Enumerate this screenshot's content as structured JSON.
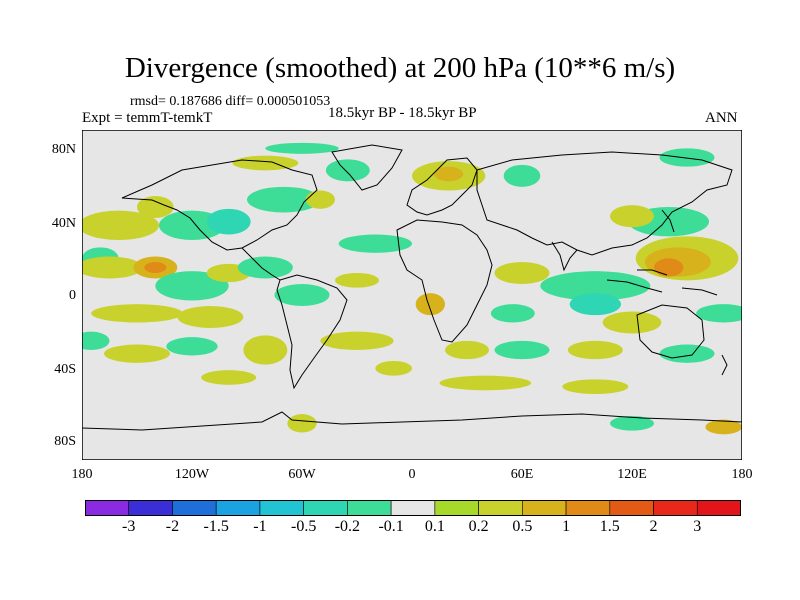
{
  "title": "Divergence (smoothed) at 200 hPa (10**6 m/s)",
  "rmsd_line": "rmsd= 0.187686 diff= 0.000501053",
  "expt_line": "Expt = temmT-temkT",
  "period_line": "18.5kyr BP - 18.5kyr BP",
  "season": "ANN",
  "y_axis_labels": [
    "80N",
    "40N",
    "0",
    "40S",
    "80S"
  ],
  "x_axis_labels": [
    "180",
    "120W",
    "60W",
    "0",
    "60E",
    "120E",
    "180"
  ],
  "colorbar": {
    "labels": [
      "-3",
      "-2",
      "-1.5",
      "-1",
      "-0.5",
      "-0.2",
      "-0.1",
      "0.1",
      "0.2",
      "0.5",
      "1",
      "1.5",
      "2",
      "3"
    ],
    "colors": [
      "#8a2be2",
      "#3a2fd6",
      "#1f6fd8",
      "#1aa3e0",
      "#22c4d4",
      "#2fd6b4",
      "#3ddd98",
      "#e6e6e6",
      "#a6d92a",
      "#c9d22c",
      "#d8b21c",
      "#e08a18",
      "#e25a14",
      "#e8281a",
      "#e2161a"
    ]
  },
  "map_data": {
    "projection": "cylindrical equidistant",
    "lon_range": [
      -180,
      180
    ],
    "lat_range": [
      -90,
      90
    ],
    "field": "200 hPa divergence anomaly (smoothed)",
    "units": "10**6 m/s",
    "blobs": [
      {
        "lon": -160,
        "lat": 38,
        "rx": 22,
        "ry": 8,
        "level": 0.2
      },
      {
        "lon": -140,
        "lat": 48,
        "rx": 10,
        "ry": 6,
        "level": 0.2
      },
      {
        "lon": -170,
        "lat": 20,
        "rx": 10,
        "ry": 6,
        "level": -0.2
      },
      {
        "lon": -120,
        "lat": 38,
        "rx": 18,
        "ry": 8,
        "level": -0.2
      },
      {
        "lon": -100,
        "lat": 40,
        "rx": 12,
        "ry": 7,
        "level": -0.5
      },
      {
        "lon": -70,
        "lat": 52,
        "rx": 20,
        "ry": 7,
        "level": -0.2
      },
      {
        "lon": -50,
        "lat": 52,
        "rx": 8,
        "ry": 5,
        "level": 0.2
      },
      {
        "lon": -80,
        "lat": 72,
        "rx": 18,
        "ry": 4,
        "level": 0.2
      },
      {
        "lon": -60,
        "lat": 80,
        "rx": 20,
        "ry": 3,
        "level": -0.2
      },
      {
        "lon": -35,
        "lat": 68,
        "rx": 12,
        "ry": 6,
        "level": -0.2
      },
      {
        "lon": 20,
        "lat": 65,
        "rx": 20,
        "ry": 8,
        "level": 0.2
      },
      {
        "lon": 20,
        "lat": 66,
        "rx": 8,
        "ry": 4,
        "level": 0.5
      },
      {
        "lon": 60,
        "lat": 65,
        "rx": 10,
        "ry": 6,
        "level": -0.2
      },
      {
        "lon": 150,
        "lat": 75,
        "rx": 15,
        "ry": 5,
        "level": -0.2
      },
      {
        "lon": 140,
        "lat": 40,
        "rx": 22,
        "ry": 8,
        "level": -0.2
      },
      {
        "lon": 120,
        "lat": 43,
        "rx": 12,
        "ry": 6,
        "level": 0.2
      },
      {
        "lon": 150,
        "lat": 20,
        "rx": 28,
        "ry": 12,
        "level": 0.2
      },
      {
        "lon": 145,
        "lat": 18,
        "rx": 18,
        "ry": 8,
        "level": 0.5
      },
      {
        "lon": 140,
        "lat": 15,
        "rx": 8,
        "ry": 5,
        "level": 1
      },
      {
        "lon": 100,
        "lat": 5,
        "rx": 30,
        "ry": 8,
        "level": -0.2
      },
      {
        "lon": 100,
        "lat": -5,
        "rx": 14,
        "ry": 6,
        "level": -0.5
      },
      {
        "lon": 120,
        "lat": -15,
        "rx": 16,
        "ry": 6,
        "level": 0.2
      },
      {
        "lon": 170,
        "lat": -10,
        "rx": 15,
        "ry": 5,
        "level": -0.2
      },
      {
        "lon": 60,
        "lat": 12,
        "rx": 15,
        "ry": 6,
        "level": 0.2
      },
      {
        "lon": 55,
        "lat": -10,
        "rx": 12,
        "ry": 5,
        "level": -0.2
      },
      {
        "lon": 10,
        "lat": -5,
        "rx": 8,
        "ry": 6,
        "level": 0.5
      },
      {
        "lon": -20,
        "lat": 28,
        "rx": 20,
        "ry": 5,
        "level": -0.2
      },
      {
        "lon": -165,
        "lat": 15,
        "rx": 18,
        "ry": 6,
        "level": 0.2
      },
      {
        "lon": -140,
        "lat": 15,
        "rx": 12,
        "ry": 6,
        "level": 0.5
      },
      {
        "lon": -140,
        "lat": 15,
        "rx": 6,
        "ry": 3,
        "level": 1
      },
      {
        "lon": -120,
        "lat": 5,
        "rx": 20,
        "ry": 8,
        "level": -0.2
      },
      {
        "lon": -100,
        "lat": 12,
        "rx": 12,
        "ry": 5,
        "level": 0.2
      },
      {
        "lon": -80,
        "lat": 15,
        "rx": 15,
        "ry": 6,
        "level": -0.2
      },
      {
        "lon": -60,
        "lat": 0,
        "rx": 15,
        "ry": 6,
        "level": -0.2
      },
      {
        "lon": -30,
        "lat": 8,
        "rx": 12,
        "ry": 4,
        "level": 0.2
      },
      {
        "lon": -150,
        "lat": -10,
        "rx": 25,
        "ry": 5,
        "level": 0.2
      },
      {
        "lon": -110,
        "lat": -12,
        "rx": 18,
        "ry": 6,
        "level": 0.2
      },
      {
        "lon": -175,
        "lat": -25,
        "rx": 10,
        "ry": 5,
        "level": -0.2
      },
      {
        "lon": -150,
        "lat": -32,
        "rx": 18,
        "ry": 5,
        "level": 0.2
      },
      {
        "lon": -120,
        "lat": -28,
        "rx": 14,
        "ry": 5,
        "level": -0.2
      },
      {
        "lon": -80,
        "lat": -30,
        "rx": 12,
        "ry": 8,
        "level": 0.2
      },
      {
        "lon": -30,
        "lat": -25,
        "rx": 20,
        "ry": 5,
        "level": 0.2
      },
      {
        "lon": -10,
        "lat": -40,
        "rx": 10,
        "ry": 4,
        "level": 0.2
      },
      {
        "lon": 30,
        "lat": -30,
        "rx": 12,
        "ry": 5,
        "level": 0.2
      },
      {
        "lon": 60,
        "lat": -30,
        "rx": 15,
        "ry": 5,
        "level": -0.2
      },
      {
        "lon": 100,
        "lat": -30,
        "rx": 15,
        "ry": 5,
        "level": 0.2
      },
      {
        "lon": 150,
        "lat": -32,
        "rx": 15,
        "ry": 5,
        "level": -0.2
      },
      {
        "lon": -100,
        "lat": -45,
        "rx": 15,
        "ry": 4,
        "level": 0.2
      },
      {
        "lon": 40,
        "lat": -48,
        "rx": 25,
        "ry": 4,
        "level": 0.2
      },
      {
        "lon": 100,
        "lat": -50,
        "rx": 18,
        "ry": 4,
        "level": 0.2
      },
      {
        "lon": -60,
        "lat": -70,
        "rx": 8,
        "ry": 5,
        "level": 0.2
      },
      {
        "lon": 120,
        "lat": -70,
        "rx": 12,
        "ry": 4,
        "level": -0.2
      },
      {
        "lon": 170,
        "lat": -72,
        "rx": 10,
        "ry": 4,
        "level": 0.5
      }
    ]
  }
}
